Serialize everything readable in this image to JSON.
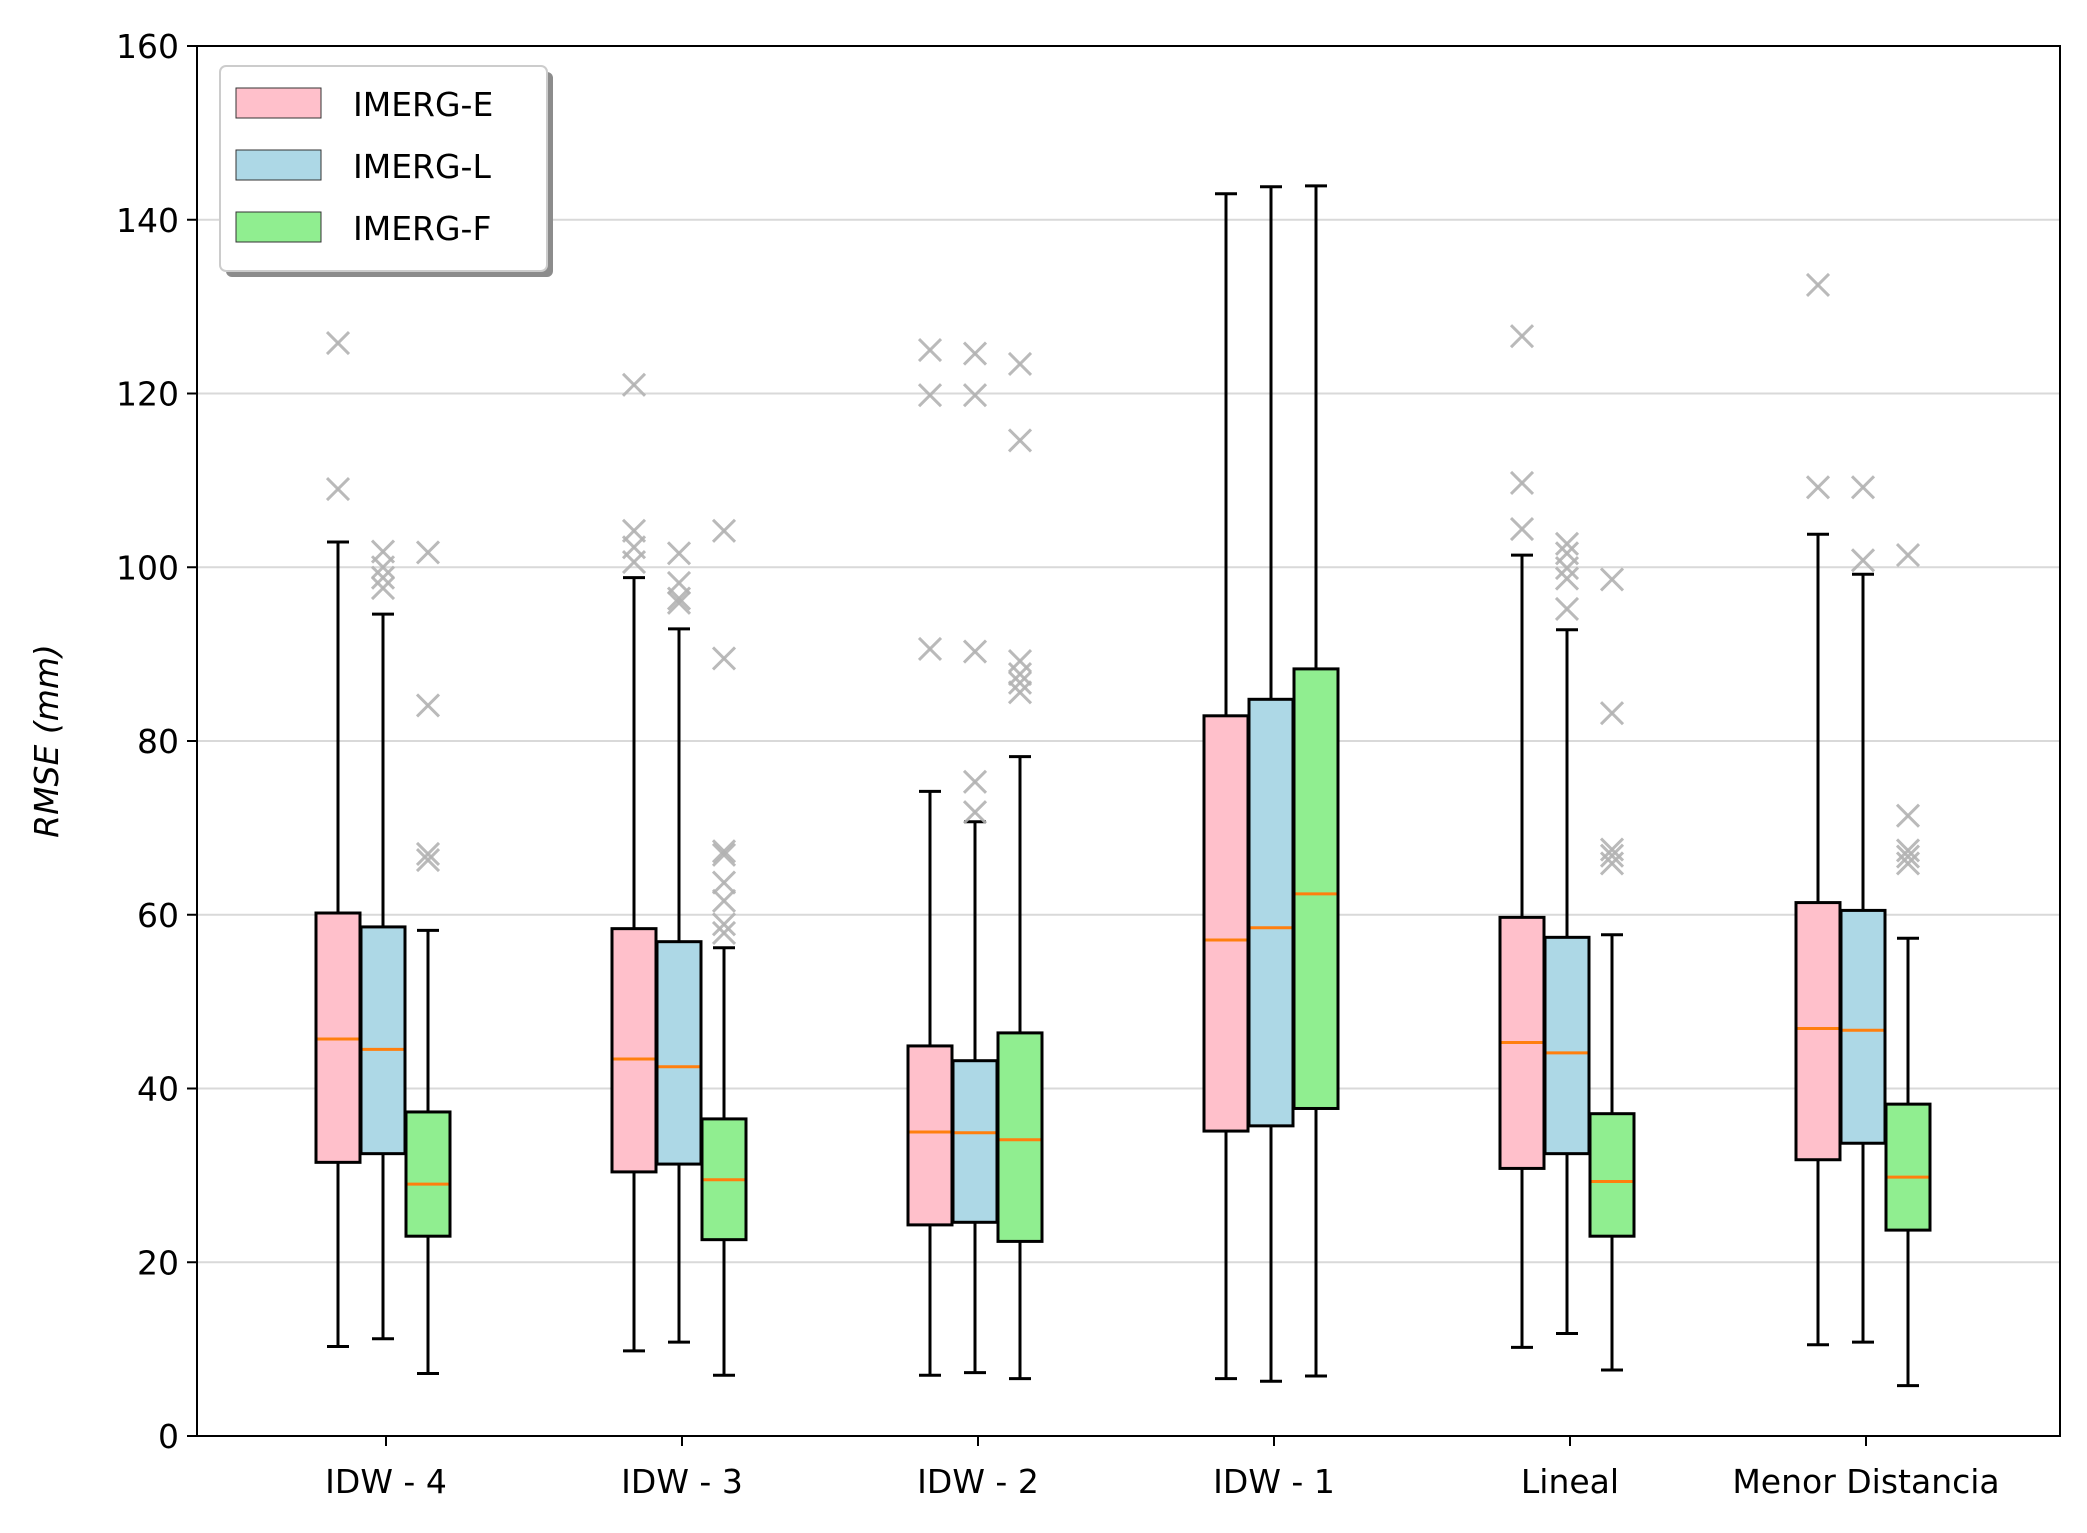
{
  "chart_data": {
    "type": "box",
    "title": "",
    "xlabel": "",
    "ylabel": "RMSE (mm)",
    "ylim": [
      0,
      160
    ],
    "yticks": [
      0,
      20,
      40,
      60,
      80,
      100,
      120,
      140,
      160
    ],
    "grid": "horizontal",
    "legend_position": "top-left",
    "categories": [
      "IDW - 4",
      "IDW - 3",
      "IDW - 2",
      "IDW - 1",
      "Lineal",
      "Menor Distancia"
    ],
    "series": [
      {
        "name": "IMERG-E",
        "color": "#FFC0CB",
        "boxes": [
          {
            "whisker_low": 10.3,
            "q1": 31.5,
            "median": 45.7,
            "q3": 60.2,
            "whisker_high": 102.9,
            "outliers": [
              109.0,
              125.8
            ]
          },
          {
            "whisker_low": 9.8,
            "q1": 30.4,
            "median": 43.4,
            "q3": 58.4,
            "whisker_high": 98.8,
            "outliers": [
              100.6,
              102.3,
              104.2,
              121.0
            ]
          },
          {
            "whisker_low": 7.0,
            "q1": 24.3,
            "median": 35.0,
            "q3": 44.9,
            "whisker_high": 74.2,
            "outliers": [
              90.6,
              119.8,
              125.0
            ]
          },
          {
            "whisker_low": 6.6,
            "q1": 35.1,
            "median": 57.1,
            "q3": 82.9,
            "whisker_high": 143.0,
            "outliers": []
          },
          {
            "whisker_low": 10.2,
            "q1": 30.8,
            "median": 45.3,
            "q3": 59.7,
            "whisker_high": 101.4,
            "outliers": [
              104.4,
              109.7,
              126.6
            ]
          },
          {
            "whisker_low": 10.5,
            "q1": 31.8,
            "median": 46.9,
            "q3": 61.4,
            "whisker_high": 103.8,
            "outliers": [
              109.2,
              132.5
            ]
          }
        ]
      },
      {
        "name": "IMERG-L",
        "color": "#ADD8E6",
        "boxes": [
          {
            "whisker_low": 11.2,
            "q1": 32.5,
            "median": 44.5,
            "q3": 58.6,
            "whisker_high": 94.6,
            "outliers": [
              97.6,
              98.8,
              100.0,
              101.8
            ]
          },
          {
            "whisker_low": 10.8,
            "q1": 31.3,
            "median": 42.5,
            "q3": 56.9,
            "whisker_high": 92.9,
            "outliers": [
              95.9,
              96.4,
              98.2,
              101.6
            ]
          },
          {
            "whisker_low": 7.3,
            "q1": 24.6,
            "median": 34.9,
            "q3": 43.2,
            "whisker_high": 70.7,
            "outliers": [
              71.8,
              75.3,
              90.3,
              119.8,
              124.6
            ]
          },
          {
            "whisker_low": 6.3,
            "q1": 35.7,
            "median": 58.5,
            "q3": 84.8,
            "whisker_high": 143.8,
            "outliers": []
          },
          {
            "whisker_low": 11.8,
            "q1": 32.5,
            "median": 44.1,
            "q3": 57.4,
            "whisker_high": 92.8,
            "outliers": [
              95.2,
              98.7,
              99.9,
              101.6,
              102.7
            ]
          },
          {
            "whisker_low": 10.8,
            "q1": 33.7,
            "median": 46.7,
            "q3": 60.5,
            "whisker_high": 99.2,
            "outliers": [
              100.8,
              109.2
            ]
          }
        ]
      },
      {
        "name": "IMERG-F",
        "color": "#90EE90",
        "boxes": [
          {
            "whisker_low": 7.2,
            "q1": 23.0,
            "median": 29.0,
            "q3": 37.3,
            "whisker_high": 58.2,
            "outliers": [
              66.3,
              67.0,
              84.1,
              101.7
            ]
          },
          {
            "whisker_low": 7.0,
            "q1": 22.6,
            "median": 29.5,
            "q3": 36.5,
            "whisker_high": 56.2,
            "outliers": [
              57.9,
              58.9,
              61.6,
              63.7,
              66.9,
              67.3,
              89.5,
              104.2
            ]
          },
          {
            "whisker_low": 6.6,
            "q1": 22.4,
            "median": 34.1,
            "q3": 46.4,
            "whisker_high": 78.2,
            "outliers": [
              85.6,
              86.7,
              87.7,
              89.2,
              114.6,
              123.4
            ]
          },
          {
            "whisker_low": 6.9,
            "q1": 37.7,
            "median": 62.4,
            "q3": 88.3,
            "whisker_high": 143.9,
            "outliers": []
          },
          {
            "whisker_low": 7.6,
            "q1": 23.0,
            "median": 29.3,
            "q3": 37.1,
            "whisker_high": 57.7,
            "outliers": [
              65.9,
              66.8,
              67.5,
              83.2,
              98.6
            ]
          },
          {
            "whisker_low": 5.8,
            "q1": 23.7,
            "median": 29.8,
            "q3": 38.2,
            "whisker_high": 57.3,
            "outliers": [
              65.9,
              66.7,
              67.4,
              71.4,
              101.4
            ]
          }
        ]
      }
    ]
  },
  "colors": {
    "median": "#FF7F0E",
    "outlier": "#B3B3B3",
    "grid": "#D9D9D9",
    "axis": "#000000"
  }
}
